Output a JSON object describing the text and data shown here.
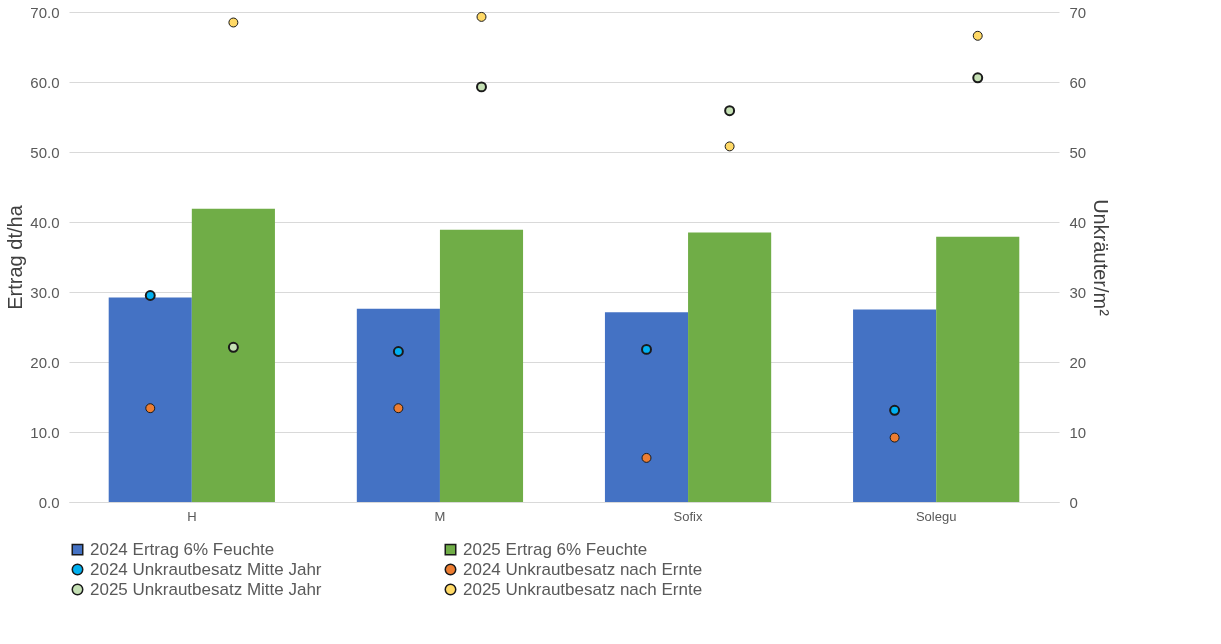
{
  "chart_data": {
    "type": "bar",
    "categories": [
      "H",
      "M",
      "Sofix",
      "Solegu"
    ],
    "ylabel": "Ertrag dt/ha",
    "y2label": "Unkräuter/m²",
    "ylim": [
      0,
      70
    ],
    "yticks": [
      {
        "value": 0,
        "label": "0.0"
      },
      {
        "value": 10,
        "label": "10.0"
      },
      {
        "value": 20,
        "label": "20.0"
      },
      {
        "value": 30,
        "label": "30.0"
      },
      {
        "value": 40,
        "label": "40.0"
      },
      {
        "value": 50,
        "label": "50.0"
      },
      {
        "value": 60,
        "label": "60.0"
      },
      {
        "value": 70,
        "label": "70.0"
      }
    ],
    "y2lim": [
      0,
      70
    ],
    "y2ticks": [
      0,
      10,
      20,
      30,
      40,
      50,
      60,
      70
    ],
    "grid": "y",
    "legend": "bottom",
    "marker": "circle",
    "series": [
      {
        "name": "2024 Ertrag 6% Feuchte",
        "type": "bar",
        "color": "#4472c4",
        "values": [
          29.2,
          27.6,
          27.1,
          27.5
        ]
      },
      {
        "name": "2025 Ertrag 6% Feuchte",
        "type": "bar",
        "color": "#70ad47",
        "values": [
          41.9,
          38.9,
          38.5,
          37.9
        ]
      },
      {
        "name": "2024 Unkrautbesatz Mitte Jahr",
        "type": "scatter",
        "axis": "y2",
        "color": "#00b0f0",
        "values": [
          29.5,
          21.5,
          21.8,
          13.1
        ]
      },
      {
        "name": "2024 Unkrautbesatz nach Ernte",
        "type": "scatter",
        "axis": "y2",
        "color": "#ed7d31",
        "values": [
          13.4,
          13.4,
          6.3,
          9.2
        ]
      },
      {
        "name": "2025 Unkrautbesatz Mitte Jahr",
        "type": "scatter",
        "axis": "y2",
        "color": "#c5e0b4",
        "values": [
          22.1,
          59.3,
          55.9,
          60.6
        ]
      },
      {
        "name": "2025 Unkrautbesatz nach Ernte",
        "type": "scatter",
        "axis": "y2",
        "color": "#ffd966",
        "values": [
          68.5,
          69.3,
          50.8,
          66.6
        ]
      }
    ]
  }
}
